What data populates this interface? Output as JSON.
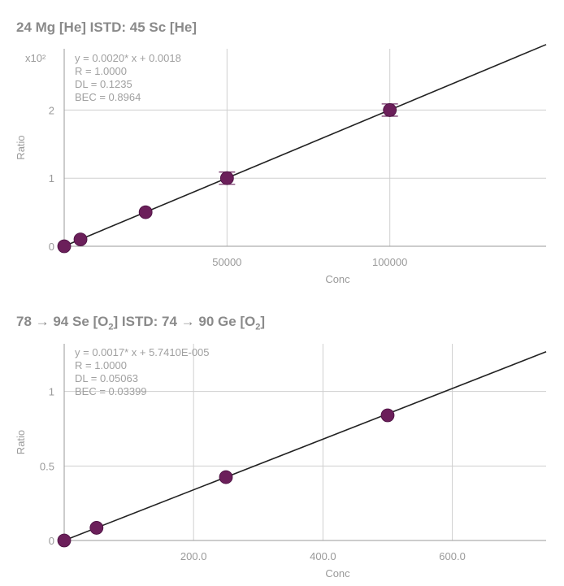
{
  "chart_data": [
    {
      "type": "scatter",
      "title": {
        "text": "24 Mg [He] ISTD: 45 Sc [He]",
        "parts": [
          "24 Mg [He] ISTD: 45 Sc [He]"
        ]
      },
      "xlabel": "Conc",
      "ylabel": "Ratio",
      "y_multiplier": "x10²",
      "xlim": [
        0,
        148000
      ],
      "ylim": [
        0,
        2.9
      ],
      "x_ticks": [
        50000,
        100000
      ],
      "y_ticks": [
        0,
        1,
        2
      ],
      "x_tick_labels": [
        "50000",
        "100000"
      ],
      "y_tick_labels": [
        "0",
        "1",
        "2"
      ],
      "grid": true,
      "point_color": "#6b1f5a",
      "line_color": "#222222",
      "points": [
        {
          "x": 0,
          "y": 0.0
        },
        {
          "x": 5000,
          "y": 0.1
        },
        {
          "x": 25000,
          "y": 0.5
        },
        {
          "x": 50000,
          "y": 1.0,
          "error": 0.09
        },
        {
          "x": 100000,
          "y": 2.0,
          "error": 0.09
        }
      ],
      "fit": {
        "slope": 0.002,
        "intercept": 0.0018,
        "slope_display_scale": 0.01
      },
      "annotations": [
        "y = 0.0020* x + 0.0018",
        "R = 1.0000",
        "DL = 0.1235",
        "BEC = 0.8964"
      ]
    },
    {
      "type": "scatter",
      "title": {
        "pre": "78 → 94 Se [O",
        "sub1": "2",
        "mid": "] ISTD: 74 → 90 Ge [O",
        "sub2": "2",
        "post": "]"
      },
      "xlabel": "Conc",
      "ylabel": "Ratio",
      "xlim": [
        0,
        745
      ],
      "ylim": [
        0,
        1.32
      ],
      "x_ticks": [
        200,
        400,
        600
      ],
      "y_ticks": [
        0,
        0.5,
        1
      ],
      "x_tick_labels": [
        "200.0",
        "400.0",
        "600.0"
      ],
      "y_tick_labels": [
        "0",
        "0.5",
        "1"
      ],
      "grid": true,
      "point_color": "#6b1f5a",
      "line_color": "#222222",
      "points": [
        {
          "x": 0,
          "y": 0.0
        },
        {
          "x": 50,
          "y": 0.085
        },
        {
          "x": 250,
          "y": 0.425
        },
        {
          "x": 500,
          "y": 0.84
        }
      ],
      "fit": {
        "slope": 0.0017,
        "intercept": 5.741e-05,
        "slope_display_scale": 1
      },
      "annotations": [
        "y = 0.0017* x + 5.7410E-005",
        "R = 1.0000",
        "DL = 0.05063",
        "BEC = 0.03399"
      ]
    }
  ]
}
